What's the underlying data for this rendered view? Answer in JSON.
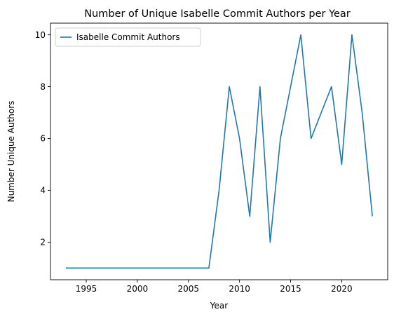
{
  "chart_data": {
    "type": "line",
    "title": "Number of Unique Isabelle Commit Authors per Year",
    "xlabel": "Year",
    "ylabel": "Number Unique Authors",
    "xlim": [
      1991.5,
      2024.5
    ],
    "ylim": [
      0.55,
      10.45
    ],
    "xticks": [
      1995,
      2000,
      2005,
      2010,
      2015,
      2020
    ],
    "yticks": [
      2,
      4,
      6,
      8,
      10
    ],
    "grid": false,
    "legend_position": "upper-left",
    "colors": {
      "series": "#1f77b4"
    },
    "series": [
      {
        "name": "Isabelle Commit Authors",
        "x": [
          1993,
          1994,
          1995,
          1996,
          1997,
          1998,
          1999,
          2000,
          2001,
          2002,
          2003,
          2004,
          2005,
          2006,
          2007,
          2008,
          2009,
          2010,
          2011,
          2012,
          2013,
          2014,
          2015,
          2016,
          2017,
          2018,
          2019,
          2020,
          2021,
          2022,
          2023
        ],
        "values": [
          1,
          1,
          1,
          1,
          1,
          1,
          1,
          1,
          1,
          1,
          1,
          1,
          1,
          1,
          1,
          4,
          8,
          6,
          3,
          8,
          2,
          6,
          8,
          10,
          6,
          7,
          8,
          5,
          10,
          7,
          3
        ]
      }
    ]
  }
}
